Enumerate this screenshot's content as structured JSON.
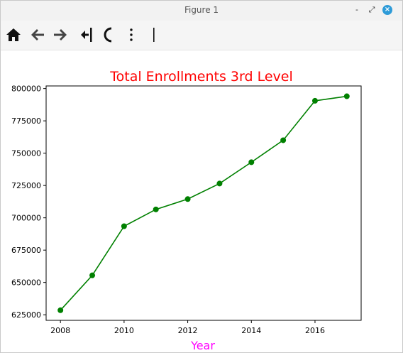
{
  "window": {
    "title": "Figure 1"
  },
  "titlebar_buttons": {
    "minimize": "-",
    "maximize": "⤢",
    "close": "×"
  },
  "toolbar": {
    "items": [
      {
        "name": "home-icon"
      },
      {
        "name": "back-arrow-icon"
      },
      {
        "name": "forward-arrow-icon"
      },
      {
        "name": "pan-icon"
      },
      {
        "name": "zoom-icon"
      },
      {
        "name": "configure-subplots-icon"
      },
      {
        "name": "save-icon"
      }
    ]
  },
  "chart_data": {
    "type": "line",
    "title": "Total Enrollments 3rd Level",
    "xlabel": "Year",
    "ylabel": "",
    "x": [
      2008,
      2009,
      2010,
      2011,
      2012,
      2013,
      2014,
      2015,
      2016,
      2017
    ],
    "series": [
      {
        "values": [
          628500,
          655500,
          693500,
          706500,
          714500,
          726500,
          743000,
          760000,
          790500,
          794000
        ]
      }
    ],
    "xlim": [
      2007.55,
      2017.45
    ],
    "ylim": [
      620700,
      802000
    ],
    "xticks": [
      2008,
      2010,
      2012,
      2014,
      2016
    ],
    "xtick_labels": [
      "2008",
      "2010",
      "2012",
      "2014",
      "2016"
    ],
    "yticks": [
      625000,
      650000,
      675000,
      700000,
      725000,
      750000,
      775000,
      800000
    ],
    "ytick_labels": [
      "625000",
      "650000",
      "675000",
      "700000",
      "725000",
      "750000",
      "775000",
      "800000"
    ],
    "grid": false,
    "colors": {
      "line": "#008000",
      "title": "#ff0000",
      "xlabel": "#ff00ff",
      "axes": "#000000"
    }
  }
}
